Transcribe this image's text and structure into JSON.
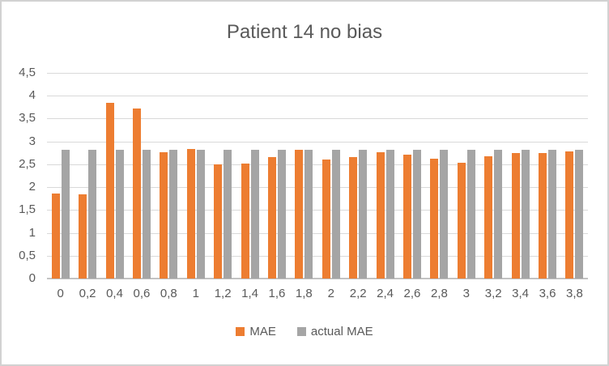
{
  "title": "Patient 14 no bias",
  "legend": [
    {
      "label": "MAE",
      "color": "#ED7D31"
    },
    {
      "label": "actual MAE",
      "color": "#A5A5A5"
    }
  ],
  "colors": {
    "text": "#595959",
    "gridline": "#D9D9D9",
    "axis_line": "#C3C3C3",
    "frame_border": "#D2D2D2",
    "background": "#FFFFFF"
  },
  "chart_data": {
    "type": "bar",
    "title": "Patient 14 no bias",
    "categories": [
      "0",
      "0,2",
      "0,4",
      "0,6",
      "0,8",
      "1",
      "1,2",
      "1,4",
      "1,6",
      "1,8",
      "2",
      "2,2",
      "2,4",
      "2,6",
      "2,8",
      "3",
      "3,2",
      "3,4",
      "3,6",
      "3,8"
    ],
    "series": [
      {
        "name": "MAE",
        "color": "#ED7D31",
        "values": [
          1.86,
          1.84,
          3.84,
          3.73,
          2.77,
          2.84,
          2.5,
          2.52,
          2.66,
          2.82,
          2.61,
          2.66,
          2.77,
          2.71,
          2.63,
          2.53,
          2.67,
          2.74,
          2.74,
          2.79
        ]
      },
      {
        "name": "actual MAE",
        "color": "#A5A5A5",
        "values": [
          2.82,
          2.82,
          2.82,
          2.82,
          2.82,
          2.82,
          2.82,
          2.82,
          2.82,
          2.82,
          2.82,
          2.82,
          2.82,
          2.82,
          2.82,
          2.82,
          2.82,
          2.82,
          2.82,
          2.82
        ]
      }
    ],
    "xlabel": "",
    "ylabel": "",
    "ylim": [
      0,
      4.5
    ],
    "y_ticks": [
      "4,5",
      "4",
      "3,5",
      "3",
      "2,5",
      "2",
      "1,5",
      "1",
      "0,5",
      "0"
    ],
    "grid": true,
    "legend_position": "bottom",
    "decimal_separator": ","
  }
}
